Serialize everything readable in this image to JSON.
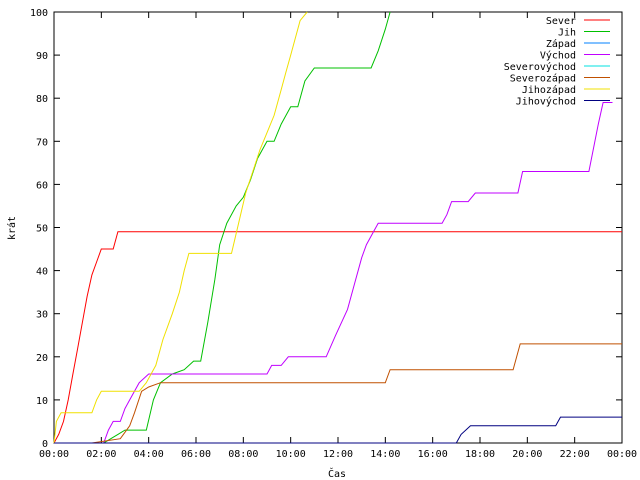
{
  "chart_data": {
    "type": "line",
    "xlabel": "Čas",
    "ylabel": "krát",
    "xlim": [
      0,
      24
    ],
    "ylim": [
      0,
      100
    ],
    "x_ticks": [
      "00:00",
      "02:00",
      "04:00",
      "06:00",
      "08:00",
      "10:00",
      "12:00",
      "14:00",
      "16:00",
      "18:00",
      "20:00",
      "22:00",
      "00:00"
    ],
    "y_ticks": [
      0,
      10,
      20,
      30,
      40,
      50,
      60,
      70,
      80,
      90,
      100
    ],
    "legend_position": "top-right",
    "series": [
      {
        "name": "Sever",
        "color": "#ff0000",
        "points": [
          [
            0,
            0
          ],
          [
            0.2,
            2
          ],
          [
            0.4,
            5
          ],
          [
            0.6,
            10
          ],
          [
            0.8,
            16
          ],
          [
            1.0,
            22
          ],
          [
            1.2,
            28
          ],
          [
            1.4,
            34
          ],
          [
            1.6,
            39
          ],
          [
            1.8,
            42
          ],
          [
            2.0,
            45
          ],
          [
            2.5,
            45
          ],
          [
            2.7,
            49
          ],
          [
            24,
            49
          ]
        ]
      },
      {
        "name": "Jih",
        "color": "#00c000",
        "points": [
          [
            0,
            0
          ],
          [
            2.1,
            0
          ],
          [
            2.4,
            1
          ],
          [
            2.7,
            2
          ],
          [
            3.0,
            3
          ],
          [
            3.9,
            3
          ],
          [
            4.2,
            10
          ],
          [
            4.5,
            14
          ],
          [
            5.0,
            16
          ],
          [
            5.5,
            17
          ],
          [
            5.9,
            19
          ],
          [
            6.2,
            19
          ],
          [
            6.5,
            28
          ],
          [
            6.8,
            38
          ],
          [
            7.0,
            46
          ],
          [
            7.3,
            51
          ],
          [
            7.7,
            55
          ],
          [
            8.0,
            57
          ],
          [
            8.3,
            61
          ],
          [
            8.6,
            66
          ],
          [
            9.0,
            70
          ],
          [
            9.3,
            70
          ],
          [
            9.6,
            74
          ],
          [
            10.0,
            78
          ],
          [
            10.3,
            78
          ],
          [
            10.6,
            84
          ],
          [
            11.0,
            87
          ],
          [
            12.0,
            87
          ],
          [
            13.4,
            87
          ],
          [
            13.7,
            91
          ],
          [
            14.0,
            96
          ],
          [
            14.2,
            100
          ]
        ]
      },
      {
        "name": "Západ",
        "color": "#0080ff",
        "points": []
      },
      {
        "name": "Východ",
        "color": "#c000ff",
        "points": [
          [
            0,
            0
          ],
          [
            2.1,
            0
          ],
          [
            2.3,
            3
          ],
          [
            2.5,
            5
          ],
          [
            2.8,
            5
          ],
          [
            3.0,
            8
          ],
          [
            3.2,
            10
          ],
          [
            3.6,
            14
          ],
          [
            4.0,
            16
          ],
          [
            9.0,
            16
          ],
          [
            9.2,
            18
          ],
          [
            9.6,
            18
          ],
          [
            9.9,
            20
          ],
          [
            11.5,
            20
          ],
          [
            11.9,
            25
          ],
          [
            12.4,
            31
          ],
          [
            12.7,
            37
          ],
          [
            13.0,
            43
          ],
          [
            13.2,
            46
          ],
          [
            13.5,
            49
          ],
          [
            13.7,
            51
          ],
          [
            16.4,
            51
          ],
          [
            16.6,
            53
          ],
          [
            16.8,
            56
          ],
          [
            17.5,
            56
          ],
          [
            17.8,
            58
          ],
          [
            19.6,
            58
          ],
          [
            19.8,
            63
          ],
          [
            22.6,
            63
          ],
          [
            23.0,
            74
          ],
          [
            23.2,
            79
          ],
          [
            23.6,
            79
          ]
        ]
      },
      {
        "name": "Severovýchod",
        "color": "#00e0e0",
        "points": []
      },
      {
        "name": "Severozápad",
        "color": "#c05000",
        "points": [
          [
            0,
            0
          ],
          [
            1.6,
            0
          ],
          [
            2.8,
            1
          ],
          [
            3.2,
            4
          ],
          [
            3.4,
            7
          ],
          [
            3.7,
            12
          ],
          [
            4.0,
            13
          ],
          [
            4.5,
            14
          ],
          [
            14.0,
            14
          ],
          [
            14.2,
            17
          ],
          [
            19.4,
            17
          ],
          [
            19.7,
            23
          ],
          [
            24,
            23
          ]
        ]
      },
      {
        "name": "Jihozápad",
        "color": "#f0e000",
        "points": [
          [
            0,
            0
          ],
          [
            0.1,
            5
          ],
          [
            0.3,
            7
          ],
          [
            1.6,
            7
          ],
          [
            1.8,
            10
          ],
          [
            2.0,
            12
          ],
          [
            3.6,
            12
          ],
          [
            3.9,
            14
          ],
          [
            4.3,
            18
          ],
          [
            4.6,
            24
          ],
          [
            5.0,
            30
          ],
          [
            5.3,
            35
          ],
          [
            5.5,
            40
          ],
          [
            5.7,
            44
          ],
          [
            7.5,
            44
          ],
          [
            7.8,
            51
          ],
          [
            8.1,
            58
          ],
          [
            8.4,
            63
          ],
          [
            8.7,
            68
          ],
          [
            9.0,
            72
          ],
          [
            9.3,
            76
          ],
          [
            9.6,
            82
          ],
          [
            9.8,
            86
          ],
          [
            10.0,
            90
          ],
          [
            10.2,
            94
          ],
          [
            10.4,
            98
          ],
          [
            10.7,
            100
          ]
        ]
      },
      {
        "name": "Jihovýchod",
        "color": "#000080",
        "points": [
          [
            0,
            0
          ],
          [
            17.0,
            0
          ],
          [
            17.2,
            2
          ],
          [
            17.6,
            4
          ],
          [
            21.2,
            4
          ],
          [
            21.4,
            6
          ],
          [
            24,
            6
          ]
        ]
      }
    ]
  }
}
